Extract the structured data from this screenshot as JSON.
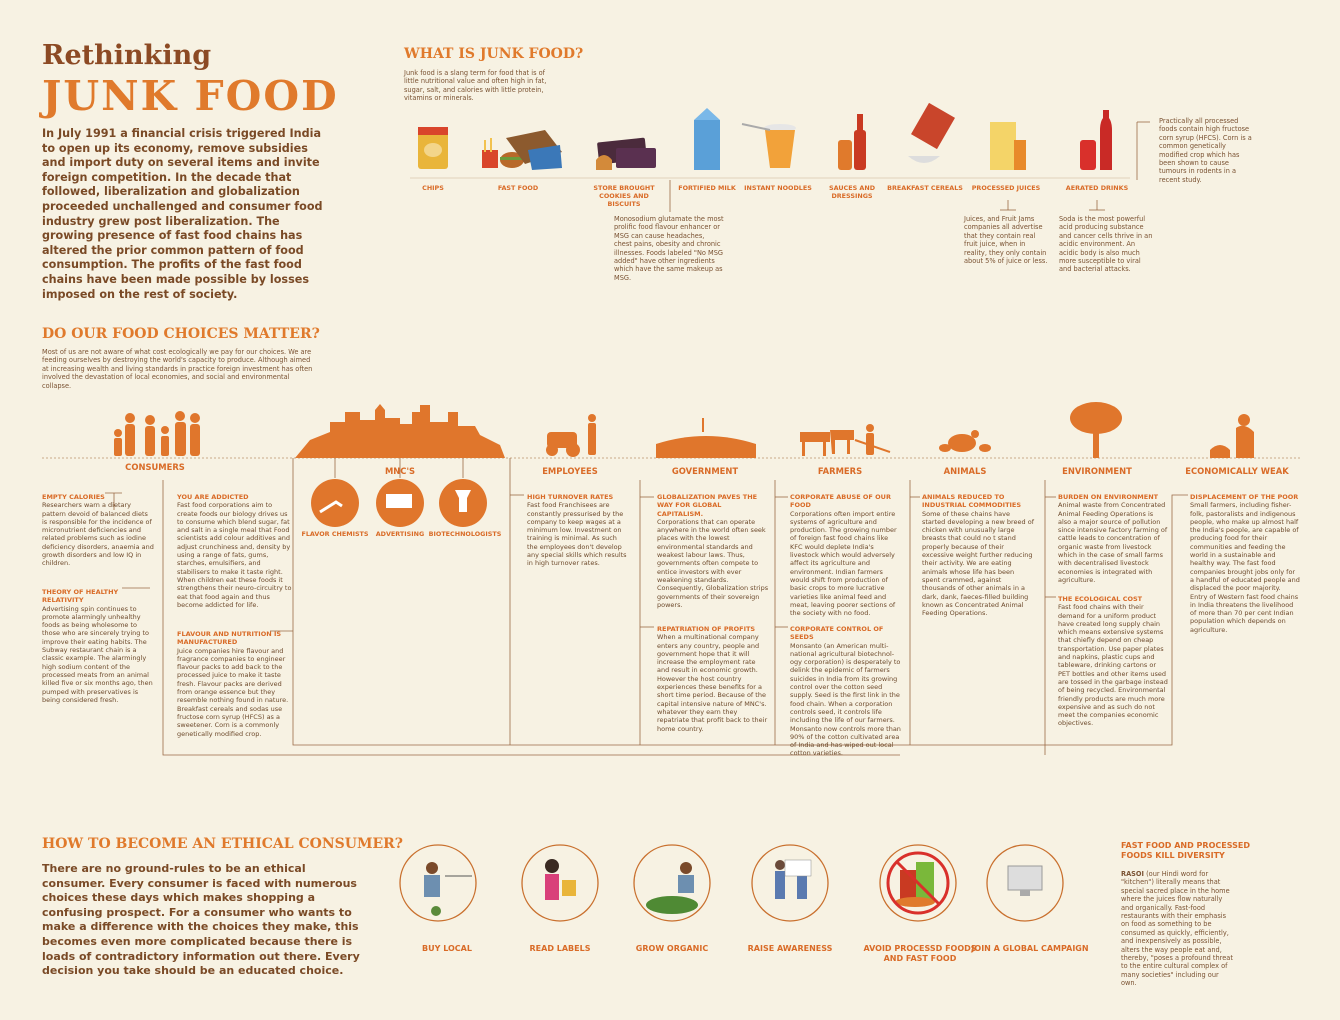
{
  "header": {
    "title_top": "Rethinking",
    "title_main": "JUNK FOOD",
    "intro": "In July 1991 a financial crisis triggered India to open up its economy, remove subsidies and import duty on several items and invite foreign competition. In the decade that followed, liberalization and globalization proceeded unchallenged and consumer food industry grew post liberalization. The growing presence of fast food chains has altered the prior common pattern of food consumption. The profits of the fast food chains have been made possible by losses imposed on the rest of society."
  },
  "junk_food": {
    "heading": "WHAT IS JUNK FOOD?",
    "description": "Junk food is a slang term for food that is of little nutritional value and often high in fat, sugar, salt, and calories with little protein, vitamins or minerals.",
    "items": [
      "CHIPS",
      "FAST FOOD",
      "STORE BROUGHT COOKIES AND BISCUITS",
      "FORTIFIED MILK",
      "INSTANT NOODLES",
      "SAUCES AND DRESSINGS",
      "BREAKFAST CEREALS",
      "PROCESSED JUICES",
      "AERATED DRINKS"
    ],
    "notes": {
      "msg": "Monosodium glutamate the most prolific food flavour enhancer or MSG can cause headaches, chest pains, obesity and chronic illnesses. Foods labeled \"No MSG added\" have other ingredients which have the same makeup as MSG.",
      "juices": "Juices, and Fruit Jams companies all advertise that they contain real fruit juice, when in reality, they only contain about 5% of juice or less.",
      "soda": "Soda is the most powerful acid producing substance and cancer cells thrive in an acidic environment. An acidic body is also much more susceptible to viral and bacterial attacks.",
      "hfcs": "Practically all processed foods contain high fructose corn syrup (HFCS). Corn is a common genetically modified crop which has been shown to cause tumours in rodents in a recent study."
    }
  },
  "food_choices": {
    "heading": "DO OUR FOOD CHOICES MATTER?",
    "description": "Most of us are not aware of what cost ecologically we pay for our choices. We are feeding ourselves by destroying the world's capacity to produce. Although aimed at increasing wealth and living standards in practice foreign investment has often involved the devastation of local economies, and social and environmental collapse.",
    "groups": [
      {
        "label": "CONSUMERS",
        "blocks": [
          {
            "title": "EMPTY CALORIES",
            "text": "Researchers warn a dietary pattern devoid of balanced diets is responsible for the incidence of micronutrient deficiencies and related problems such as iodine deficiency disorders, anaemia and growth disorders and low IQ in children."
          },
          {
            "title": "THEORY OF HEALTHY RELATIVITY",
            "text": "Advertising spin continues to promote alarmingly unhealthy foods as being wholesome to those who are sincerely trying to improve their eating habits. The Subway restaurant chain is a classic example. The alarmingly high sodium content of the processed meats from an animal killed five or six months ago, then pumped with preservatives is being considered fresh."
          }
        ]
      },
      {
        "label": "MNC'S",
        "subgroups": [
          "FLAVOR CHEMISTS",
          "ADVERTISING",
          "BIOTECHNOLOGISTS"
        ],
        "blocks": [
          {
            "title": "YOU ARE ADDICTED",
            "text": "Fast food corporations aim to create foods our biology drives us to consume which blend sugar, fat and salt in a single meal that Food scientists add colour additives and adjust crunchiness and, density by using a range of fats, gums, starches, emulsifiers, and stabilisers to make it taste right. When children eat these foods it strengthens their neuro-circuitry to eat that food again and thus become addicted for life."
          },
          {
            "title": "FLAVOUR AND NUTRITION IS MANUFACTURED",
            "text": "Juice companies hire flavour and fragrance companies to engineer flavour packs to add back to the processed juice to make it taste fresh. Flavour packs are derived from orange essence but they resemble nothing found in nature. Breakfast cereals and sodas use fructose corn syrup (HFCS) as a sweetener. Corn is a commonly genetically modified crop."
          }
        ]
      },
      {
        "label": "EMPLOYEES",
        "blocks": [
          {
            "title": "HIGH TURNOVER RATES",
            "text": "Fast food Franchisees are constantly pressurised by the company to keep wages at a minimum low. Investment on training is minimal. As such the employees don't develop any special skills which results in high turnover rates."
          }
        ]
      },
      {
        "label": "GOVERNMENT",
        "blocks": [
          {
            "title": "GLOBALIZATION PAVES THE WAY FOR GLOBAL CAPITALISM.",
            "text": "Corporations that can operate anywhere in the world often seek places with the lowest environmental standards and weakest labour laws. Thus, governments often compete to entice investors with ever weakening standards. Consequently, Globalization strips governments of their sovereign powers."
          },
          {
            "title": "REPATRIATION OF PROFITS",
            "text": "When a multinational company enters any country, people and government hope that it will increase the employment rate and result in economic growth. However the host country experiences these benefits for a short time period. Because of the capital intensive nature of MNC's. whatever they earn they repatriate that profit back to their home country."
          }
        ]
      },
      {
        "label": "FARMERS",
        "blocks": [
          {
            "title": "CORPORATE ABUSE OF OUR FOOD",
            "text": "Corporations often import entire systems of agriculture and production. The growing number of foreign fast food chains like KFC would deplete India's livestock which would adversely affect its agriculture and environment. Indian farmers would shift from production of basic crops to more lucrative varieties like animal feed and meat, leaving poorer sections of the society with no food."
          },
          {
            "title": "CORPORATE CONTROL OF SEEDS",
            "text": "Monsanto (an American multi-national agricultural biotechnol-ogy corporation) is desperately to delink the epidemic of farmers suicides in India from its growing control over the cotton seed supply. Seed is the first link in the food chain. When a corporation controls seed, it controls life including the life of our farmers. Monsanto now controls more than 90% of the cotton cultivated area of India and has wiped out local cotton varieties."
          }
        ]
      },
      {
        "label": "ANIMALS",
        "blocks": [
          {
            "title": "ANIMALS REDUCED TO INDUSTRIAL COMMODITIES",
            "text": "Some of these chains have started developing a new breed of chicken with unusually large breasts that could no t stand properly because of their excessive weight further reducing their activity. We are eating animals whose life has been spent crammed, against thousands of other animals in a dark, dank, faeces-filled building known as Concentrated Animal Feeding Operations."
          }
        ]
      },
      {
        "label": "ENVIRONMENT",
        "blocks": [
          {
            "title": "BURDEN ON ENVIRONMENT",
            "text": "Animal waste from Concentrated Animal Feeding Operations is also a major source of pollution since intensive factory farming of cattle leads to concentration of organic waste from livestock which in the case of small farms with decentralised livestock economies is integrated with agriculture."
          },
          {
            "title": "THE ECOLOGICAL COST",
            "text": "Fast food chains with their demand for a uniform product have created long supply chain which means extensive systems that chiefly depend on cheap transportation. Use paper plates and napkins, plastic cups and tableware, drinking cartons or PET bottles and other items used are tossed in the garbage instead of being recycled. Environmental friendly products are much more expensive and as such do not meet the companies economic objectives."
          }
        ]
      },
      {
        "label": "ECONOMICALLY WEAK",
        "blocks": [
          {
            "title": "DISPLACEMENT OF THE POOR",
            "text": "Small farmers, including fisher-folk, pastoralists and indigenous people, who make up almost half the India's people, are capable of producing food for their communities and feeding the world in a sustainable and healthy way. The fast food companies brought jobs only for a handful of educated people and displaced the poor majority. Entry of Western fast food chains in India threatens the livelihood of more than 70 per cent Indian population which depends on agriculture."
          }
        ]
      }
    ]
  },
  "ethical": {
    "heading": "HOW TO BECOME AN ETHICAL CONSUMER?",
    "description": "There are no ground-rules to be an ethical consumer. Every consumer is faced with numerous choices these days which makes shopping a confusing prospect. For a consumer who wants to make a difference with the choices they make, this becomes even more complicated because there is loads of contradictory information out there.  Every decision you take should be an educated choice.",
    "actions": [
      "BUY LOCAL",
      "READ LABELS",
      "GROW ORGANIC",
      "RAISE AWARENESS",
      "AVOID PROCESSD FOODS AND FAST FOOD",
      "JOIN A GLOBAL CAMPAIGN"
    ],
    "diversity": {
      "heading": "FAST FOOD AND PROCESSED FOODS KILL DIVERSITY",
      "keyword": "RASOI",
      "text": "(our Hindi word for \"kitchen\") literally means that special sacred place in the home where the juices flow naturally and organically. Fast-food restaurants with their emphasis on food as something to be consumed as quickly, efficiently, and inexpensively as possible, alters the way people eat and, thereby, \"poses a profound threat to the entire cultural complex of many societies\" including our own."
    }
  }
}
